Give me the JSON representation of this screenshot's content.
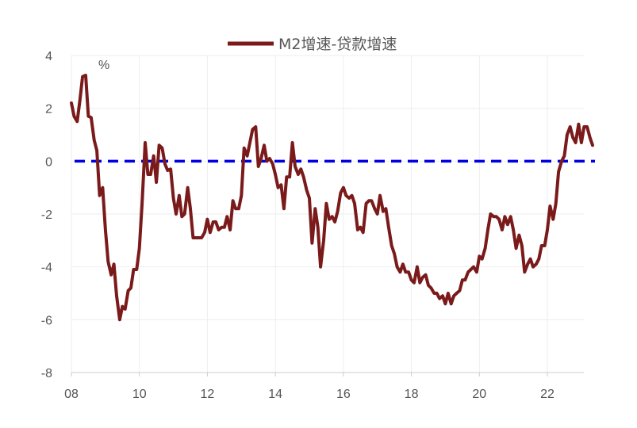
{
  "chart_data": {
    "type": "line",
    "unit_label": "%",
    "ylim": [
      -8,
      4
    ],
    "y_ticks": [
      4,
      2,
      0,
      -2,
      -4,
      -6,
      -8
    ],
    "xlim": [
      2008,
      2023.4
    ],
    "x_ticks": [
      {
        "value": 2008,
        "label": "08"
      },
      {
        "value": 2010,
        "label": "10"
      },
      {
        "value": 2012,
        "label": "12"
      },
      {
        "value": 2014,
        "label": "14"
      },
      {
        "value": 2016,
        "label": "16"
      },
      {
        "value": 2018,
        "label": "18"
      },
      {
        "value": 2020,
        "label": "20"
      },
      {
        "value": 2022,
        "label": "22"
      }
    ],
    "grid": true,
    "legend_position": "top-center",
    "reference_line": {
      "y": 0,
      "color": "#0000e0",
      "style": "dashed"
    },
    "series": [
      {
        "name": "M2增速-贷款增速",
        "color": "#7a1a1a",
        "points": [
          [
            2008.0,
            2.2
          ],
          [
            2008.08,
            1.7
          ],
          [
            2008.17,
            1.5
          ],
          [
            2008.25,
            2.3
          ],
          [
            2008.33,
            3.2
          ],
          [
            2008.42,
            3.25
          ],
          [
            2008.5,
            1.7
          ],
          [
            2008.58,
            1.65
          ],
          [
            2008.67,
            0.8
          ],
          [
            2008.75,
            0.4
          ],
          [
            2008.83,
            -1.3
          ],
          [
            2008.92,
            -1.0
          ],
          [
            2009.0,
            -2.6
          ],
          [
            2009.08,
            -3.8
          ],
          [
            2009.17,
            -4.3
          ],
          [
            2009.25,
            -3.9
          ],
          [
            2009.33,
            -5.1
          ],
          [
            2009.42,
            -6.0
          ],
          [
            2009.5,
            -5.5
          ],
          [
            2009.58,
            -5.6
          ],
          [
            2009.67,
            -4.9
          ],
          [
            2009.75,
            -4.8
          ],
          [
            2009.83,
            -4.1
          ],
          [
            2009.92,
            -4.1
          ],
          [
            2010.0,
            -3.3
          ],
          [
            2010.08,
            -1.6
          ],
          [
            2010.17,
            0.7
          ],
          [
            2010.25,
            -0.5
          ],
          [
            2010.33,
            -0.5
          ],
          [
            2010.42,
            0.2
          ],
          [
            2010.5,
            -0.8
          ],
          [
            2010.58,
            0.6
          ],
          [
            2010.67,
            0.5
          ],
          [
            2010.75,
            -0.1
          ],
          [
            2010.83,
            -0.35
          ],
          [
            2010.92,
            -0.3
          ],
          [
            2011.0,
            -1.4
          ],
          [
            2011.08,
            -2.0
          ],
          [
            2011.17,
            -1.3
          ],
          [
            2011.25,
            -2.1
          ],
          [
            2011.33,
            -2.0
          ],
          [
            2011.42,
            -1.0
          ],
          [
            2011.5,
            -1.8
          ],
          [
            2011.58,
            -2.9
          ],
          [
            2011.67,
            -2.9
          ],
          [
            2011.75,
            -2.9
          ],
          [
            2011.83,
            -2.9
          ],
          [
            2011.92,
            -2.7
          ],
          [
            2012.0,
            -2.2
          ],
          [
            2012.08,
            -2.7
          ],
          [
            2012.17,
            -2.3
          ],
          [
            2012.25,
            -2.3
          ],
          [
            2012.33,
            -2.6
          ],
          [
            2012.42,
            -2.5
          ],
          [
            2012.5,
            -2.5
          ],
          [
            2012.58,
            -2.1
          ],
          [
            2012.67,
            -2.6
          ],
          [
            2012.75,
            -1.5
          ],
          [
            2012.83,
            -1.8
          ],
          [
            2012.92,
            -1.8
          ],
          [
            2013.0,
            -1.3
          ],
          [
            2013.08,
            0.5
          ],
          [
            2013.17,
            0.2
          ],
          [
            2013.25,
            0.7
          ],
          [
            2013.33,
            1.2
          ],
          [
            2013.42,
            1.3
          ],
          [
            2013.5,
            -0.2
          ],
          [
            2013.58,
            0.1
          ],
          [
            2013.67,
            0.6
          ],
          [
            2013.75,
            0.0
          ],
          [
            2013.83,
            0.1
          ],
          [
            2013.92,
            -0.1
          ],
          [
            2014.0,
            -0.5
          ],
          [
            2014.08,
            -1.0
          ],
          [
            2014.17,
            -0.9
          ],
          [
            2014.25,
            -1.8
          ],
          [
            2014.33,
            -0.6
          ],
          [
            2014.42,
            -0.6
          ],
          [
            2014.5,
            0.7
          ],
          [
            2014.58,
            -0.2
          ],
          [
            2014.67,
            -0.5
          ],
          [
            2014.75,
            -0.3
          ],
          [
            2014.83,
            -0.6
          ],
          [
            2014.92,
            -1.1
          ],
          [
            2015.0,
            -1.4
          ],
          [
            2015.08,
            -3.1
          ],
          [
            2015.17,
            -1.8
          ],
          [
            2015.25,
            -2.5
          ],
          [
            2015.33,
            -4.0
          ],
          [
            2015.42,
            -3.0
          ],
          [
            2015.5,
            -1.6
          ],
          [
            2015.58,
            -2.2
          ],
          [
            2015.67,
            -2.1
          ],
          [
            2015.75,
            -2.3
          ],
          [
            2015.83,
            -1.9
          ],
          [
            2015.92,
            -1.2
          ],
          [
            2016.0,
            -1.0
          ],
          [
            2016.08,
            -1.3
          ],
          [
            2016.17,
            -1.4
          ],
          [
            2016.25,
            -1.3
          ],
          [
            2016.33,
            -1.6
          ],
          [
            2016.42,
            -2.6
          ],
          [
            2016.5,
            -2.5
          ],
          [
            2016.58,
            -2.7
          ],
          [
            2016.67,
            -1.6
          ],
          [
            2016.75,
            -1.5
          ],
          [
            2016.83,
            -1.5
          ],
          [
            2016.92,
            -1.8
          ],
          [
            2017.0,
            -2.0
          ],
          [
            2017.08,
            -1.3
          ],
          [
            2017.17,
            -1.9
          ],
          [
            2017.25,
            -1.8
          ],
          [
            2017.33,
            -2.5
          ],
          [
            2017.42,
            -3.2
          ],
          [
            2017.5,
            -3.5
          ],
          [
            2017.58,
            -4.0
          ],
          [
            2017.67,
            -4.2
          ],
          [
            2017.75,
            -3.9
          ],
          [
            2017.83,
            -4.2
          ],
          [
            2017.92,
            -4.2
          ],
          [
            2018.0,
            -4.5
          ],
          [
            2018.08,
            -4.6
          ],
          [
            2018.17,
            -4.0
          ],
          [
            2018.25,
            -4.6
          ],
          [
            2018.33,
            -4.4
          ],
          [
            2018.42,
            -4.3
          ],
          [
            2018.5,
            -4.7
          ],
          [
            2018.58,
            -4.8
          ],
          [
            2018.67,
            -5.0
          ],
          [
            2018.75,
            -5.0
          ],
          [
            2018.83,
            -5.2
          ],
          [
            2018.92,
            -5.1
          ],
          [
            2019.0,
            -5.4
          ],
          [
            2019.08,
            -5.0
          ],
          [
            2019.17,
            -5.4
          ],
          [
            2019.25,
            -5.1
          ],
          [
            2019.33,
            -5.0
          ],
          [
            2019.42,
            -4.9
          ],
          [
            2019.5,
            -4.5
          ],
          [
            2019.58,
            -4.5
          ],
          [
            2019.67,
            -4.2
          ],
          [
            2019.75,
            -4.1
          ],
          [
            2019.83,
            -4.0
          ],
          [
            2019.92,
            -4.2
          ],
          [
            2020.0,
            -3.6
          ],
          [
            2020.08,
            -3.7
          ],
          [
            2020.17,
            -3.3
          ],
          [
            2020.25,
            -2.6
          ],
          [
            2020.33,
            -2.0
          ],
          [
            2020.42,
            -2.1
          ],
          [
            2020.5,
            -2.1
          ],
          [
            2020.58,
            -2.2
          ],
          [
            2020.67,
            -2.6
          ],
          [
            2020.75,
            -2.1
          ],
          [
            2020.83,
            -2.4
          ],
          [
            2020.92,
            -2.1
          ],
          [
            2021.0,
            -2.6
          ],
          [
            2021.08,
            -3.3
          ],
          [
            2021.17,
            -2.8
          ],
          [
            2021.25,
            -3.2
          ],
          [
            2021.33,
            -4.2
          ],
          [
            2021.42,
            -3.9
          ],
          [
            2021.5,
            -3.7
          ],
          [
            2021.58,
            -4.0
          ],
          [
            2021.67,
            -3.9
          ],
          [
            2021.75,
            -3.7
          ],
          [
            2021.83,
            -3.2
          ],
          [
            2021.92,
            -3.2
          ],
          [
            2022.0,
            -2.6
          ],
          [
            2022.08,
            -1.7
          ],
          [
            2022.17,
            -2.2
          ],
          [
            2022.25,
            -1.6
          ],
          [
            2022.33,
            -0.4
          ],
          [
            2022.42,
            0.0
          ],
          [
            2022.5,
            0.2
          ],
          [
            2022.58,
            1.0
          ],
          [
            2022.67,
            1.3
          ],
          [
            2022.75,
            0.9
          ],
          [
            2022.83,
            0.7
          ],
          [
            2022.92,
            1.4
          ],
          [
            2023.0,
            0.7
          ],
          [
            2023.08,
            1.3
          ],
          [
            2023.17,
            1.3
          ],
          [
            2023.25,
            0.9
          ],
          [
            2023.33,
            0.6
          ]
        ]
      }
    ]
  }
}
